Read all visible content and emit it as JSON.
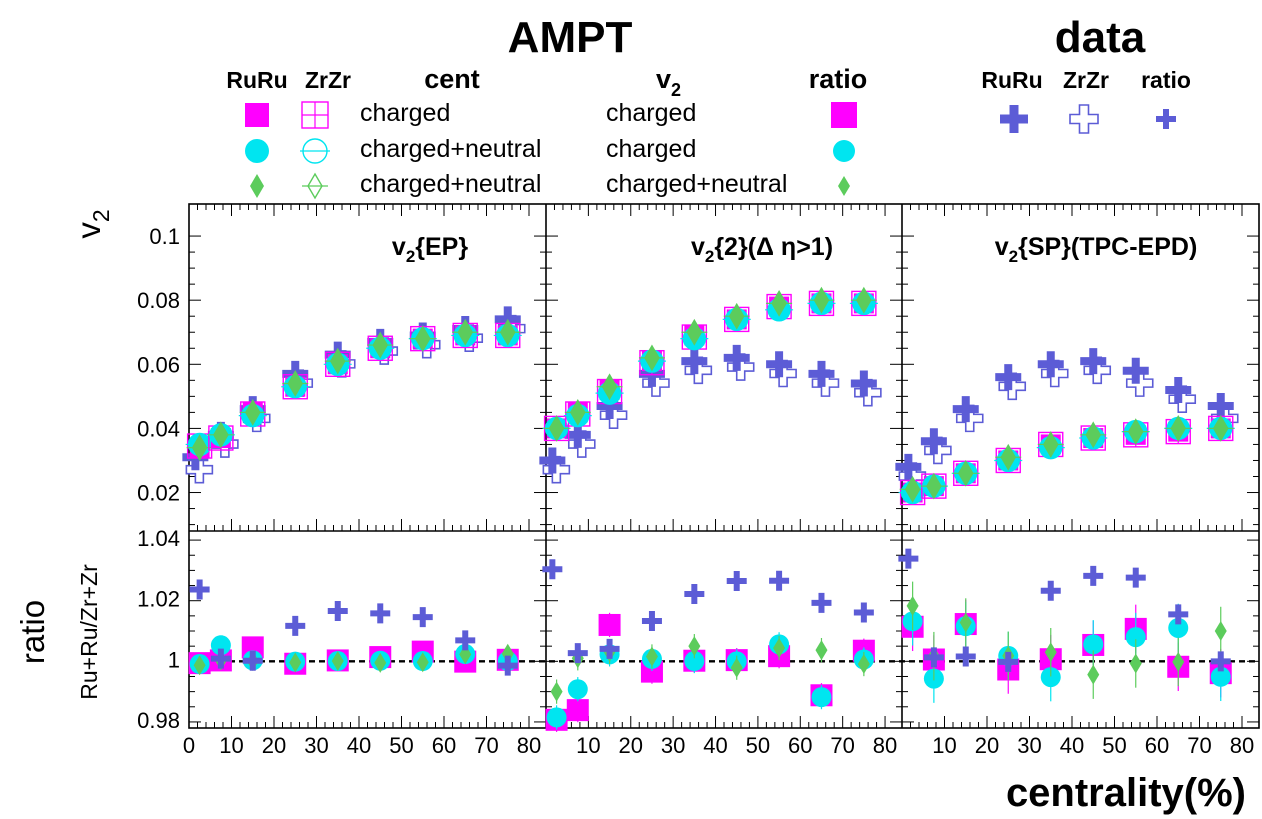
{
  "header": {
    "ampt_title": "AMPT",
    "data_title": "data",
    "col_ruru": "RuRu",
    "col_zrzr": "ZrZr",
    "col_cent": "cent",
    "col_v2": "v",
    "col_v2_sub": "2",
    "col_ratio": "ratio",
    "data_ruru": "RuRu",
    "data_zrzr": "ZrZr",
    "data_ratio": "ratio"
  },
  "legend": {
    "rows": [
      {
        "cent": "charged",
        "v2": "charged",
        "marker": "square",
        "color": "#ff00ff"
      },
      {
        "cent": "charged+neutral",
        "v2": "charged",
        "marker": "circle",
        "color": "#00e5f0"
      },
      {
        "cent": "charged+neutral",
        "v2": "charged+neutral",
        "marker": "diamond",
        "color": "#5ccc5c"
      }
    ],
    "data_color": "#5c5cd6"
  },
  "chart_data": {
    "type": "scatter",
    "xlabel": "centrality(%)",
    "ylabel_top": "v",
    "ylabel_top_sub": "2",
    "ylabel_bottom_main": "ratio",
    "ylabel_bottom_sub": "Ru+Ru/Zr+Zr",
    "xlim": [
      0,
      84
    ],
    "xticks": [
      "0",
      "10",
      "20",
      "30",
      "40",
      "50",
      "60",
      "70",
      "80"
    ],
    "top_ylim": [
      0.008,
      0.11
    ],
    "top_yticks": [
      "0.02",
      "0.04",
      "0.06",
      "0.08",
      "0.1"
    ],
    "bottom_ylim": [
      0.978,
      1.043
    ],
    "bottom_yticks": [
      "0.98",
      "1",
      "1.02",
      "1.04"
    ],
    "reference_line": 1,
    "panels": [
      {
        "label_main": "v",
        "label_sub": "2",
        "label_rest": "{EP}",
        "v2": {
          "ampt_x": [
            2.5,
            7.5,
            15,
            25,
            35,
            45,
            55,
            65,
            75
          ],
          "ampt_charged_ru": [
            0.034,
            0.037,
            0.045,
            0.053,
            0.06,
            0.065,
            0.068,
            0.069,
            0.069
          ],
          "ampt_charged_zr": [
            0.0345,
            0.037,
            0.0445,
            0.053,
            0.06,
            0.065,
            0.068,
            0.069,
            0.069
          ],
          "ampt_cn_ru": [
            0.035,
            0.038,
            0.044,
            0.053,
            0.06,
            0.065,
            0.068,
            0.069,
            0.069
          ],
          "ampt_cn_zr": [
            0.035,
            0.038,
            0.044,
            0.053,
            0.06,
            0.065,
            0.068,
            0.069,
            0.069
          ],
          "ampt_cn2_ru": [
            0.034,
            0.038,
            0.045,
            0.054,
            0.061,
            0.066,
            0.068,
            0.07,
            0.07
          ],
          "ampt_cn2_zr": [
            0.034,
            0.038,
            0.045,
            0.054,
            0.061,
            0.066,
            0.068,
            0.07,
            0.07
          ],
          "data_x": [
            1.5,
            7.5,
            15,
            25,
            35,
            45,
            55,
            65,
            75
          ],
          "data_ru": [
            0.031,
            0.038,
            0.046,
            0.057,
            0.063,
            0.067,
            0.069,
            0.071,
            0.074
          ],
          "data_zr": [
            0.029,
            0.037,
            0.045,
            0.056,
            0.062,
            0.066,
            0.068,
            0.07,
            0.073
          ]
        },
        "ratio": {
          "ampt_x": [
            2.5,
            7.5,
            15,
            25,
            35,
            45,
            55,
            65,
            75
          ],
          "charged": [
            0.9994,
            1.0003,
            1.0046,
            0.9992,
            1.0003,
            1.0014,
            1.0032,
            0.9999,
            1.0005
          ],
          "charged_neutral": [
            0.9991,
            1.0053,
            1.0003,
            0.9999,
            1.0001,
            1.0002,
            1.0001,
            1.0024,
            1.0001
          ],
          "charged_neutral_v2": [
            0.9987,
            1.0003,
            1.0001,
            0.9996,
            1.0001,
            0.9995,
            0.9997,
            1.0023,
            1.0025
          ],
          "data_x": [
            2.5,
            7.5,
            15,
            25,
            35,
            45,
            55,
            65,
            75
          ],
          "data": [
            1.0237,
            1.0009,
            1.0002,
            1.0117,
            1.0166,
            1.0158,
            1.0146,
            1.0069,
            0.9986
          ]
        }
      },
      {
        "label_main": "v",
        "label_sub": "2",
        "label_rest": "{2}(Δ η>1)",
        "v2": {
          "ampt_x": [
            2.5,
            7.5,
            15,
            25,
            35,
            45,
            55,
            65,
            75
          ],
          "ampt_charged_ru": [
            0.04,
            0.045,
            0.052,
            0.061,
            0.069,
            0.074,
            0.078,
            0.079,
            0.079
          ],
          "ampt_charged_zr": [
            0.04,
            0.0445,
            0.0515,
            0.0605,
            0.0685,
            0.074,
            0.078,
            0.079,
            0.079
          ],
          "ampt_cn_ru": [
            0.04,
            0.044,
            0.051,
            0.061,
            0.068,
            0.074,
            0.077,
            0.079,
            0.079
          ],
          "ampt_cn_zr": [
            0.04,
            0.044,
            0.051,
            0.061,
            0.068,
            0.074,
            0.077,
            0.079,
            0.079
          ],
          "ampt_cn2_ru": [
            0.04,
            0.045,
            0.053,
            0.062,
            0.07,
            0.075,
            0.079,
            0.08,
            0.08
          ],
          "ampt_cn2_zr": [
            0.04,
            0.045,
            0.053,
            0.062,
            0.07,
            0.075,
            0.079,
            0.08,
            0.08
          ],
          "data_x": [
            1.5,
            7.5,
            15,
            25,
            35,
            45,
            55,
            65,
            75
          ],
          "data_ru": [
            0.03,
            0.038,
            0.047,
            0.057,
            0.061,
            0.062,
            0.06,
            0.057,
            0.054
          ],
          "data_zr": [
            0.029,
            0.037,
            0.046,
            0.056,
            0.06,
            0.061,
            0.059,
            0.056,
            0.053
          ]
        },
        "ratio": {
          "ampt_x": [
            2.5,
            7.5,
            15,
            25,
            35,
            45,
            55,
            65,
            75
          ],
          "charged": [
            0.9807,
            0.9839,
            1.012,
            0.9966,
            1.0002,
            1.0004,
            1.0017,
            0.9888,
            1.0035
          ],
          "charged_neutral": [
            0.9815,
            0.9908,
            1.0023,
            1.0008,
            1.0001,
            1.0,
            1.0056,
            0.9882,
            1.0006
          ],
          "charged_neutral_v2": [
            0.99,
            1.001,
            1.0031,
            1.0016,
            1.005,
            0.9979,
            1.0044,
            1.0037,
            0.9991
          ],
          "data_x": [
            1.5,
            7.5,
            15,
            25,
            35,
            45,
            55,
            65,
            75
          ],
          "data": [
            1.0304,
            1.0027,
            1.0041,
            1.0133,
            1.0222,
            1.0265,
            1.0266,
            1.0193,
            1.0161
          ]
        }
      },
      {
        "label_main": "v",
        "label_sub": "2",
        "label_rest": "{SP}(TPC-EPD)",
        "v2": {
          "ampt_x": [
            2.5,
            7.5,
            15,
            25,
            35,
            45,
            55,
            65,
            75
          ],
          "ampt_charged_ru": [
            0.02,
            0.022,
            0.026,
            0.03,
            0.035,
            0.037,
            0.038,
            0.039,
            0.04
          ],
          "ampt_charged_zr": [
            0.02,
            0.022,
            0.026,
            0.03,
            0.035,
            0.037,
            0.038,
            0.039,
            0.04
          ],
          "ampt_cn_ru": [
            0.02,
            0.022,
            0.026,
            0.03,
            0.034,
            0.037,
            0.039,
            0.04,
            0.04
          ],
          "ampt_cn_zr": [
            0.02,
            0.022,
            0.026,
            0.03,
            0.034,
            0.037,
            0.039,
            0.04,
            0.04
          ],
          "ampt_cn2_ru": [
            0.021,
            0.022,
            0.026,
            0.031,
            0.035,
            0.038,
            0.039,
            0.04,
            0.04
          ],
          "ampt_cn2_zr": [
            0.021,
            0.022,
            0.026,
            0.031,
            0.035,
            0.038,
            0.039,
            0.04,
            0.04
          ],
          "data_x": [
            1.5,
            7.5,
            15,
            25,
            35,
            45,
            55,
            65,
            75
          ],
          "data_ru": [
            0.028,
            0.036,
            0.046,
            0.056,
            0.06,
            0.061,
            0.058,
            0.052,
            0.047
          ],
          "data_zr": [
            0.027,
            0.035,
            0.045,
            0.055,
            0.059,
            0.06,
            0.056,
            0.051,
            0.045
          ]
        },
        "ratio": {
          "ampt_x": [
            2.5,
            7.5,
            15,
            25,
            35,
            45,
            55,
            65,
            75
          ],
          "charged": [
            1.0114,
            1.0006,
            1.0123,
            0.9973,
            1.0007,
            1.0054,
            1.0107,
            0.9982,
            0.9961
          ],
          "charged_neutral": [
            1.0132,
            0.9943,
            1.0116,
            1.0018,
            0.9948,
            1.0056,
            1.008,
            1.011,
            0.9949
          ],
          "charged_neutral_v2": [
            1.0183,
            1.0017,
            1.0128,
            1.0018,
            1.003,
            0.9956,
            0.9993,
            0.9998,
            1.01
          ],
          "data_x": [
            1.5,
            7.5,
            15,
            25,
            35,
            45,
            55,
            65,
            75
          ],
          "data": [
            1.0339,
            1.0013,
            1.0016,
            0.9998,
            1.0233,
            1.0282,
            1.0276,
            1.0155,
            1.0
          ]
        }
      }
    ]
  }
}
